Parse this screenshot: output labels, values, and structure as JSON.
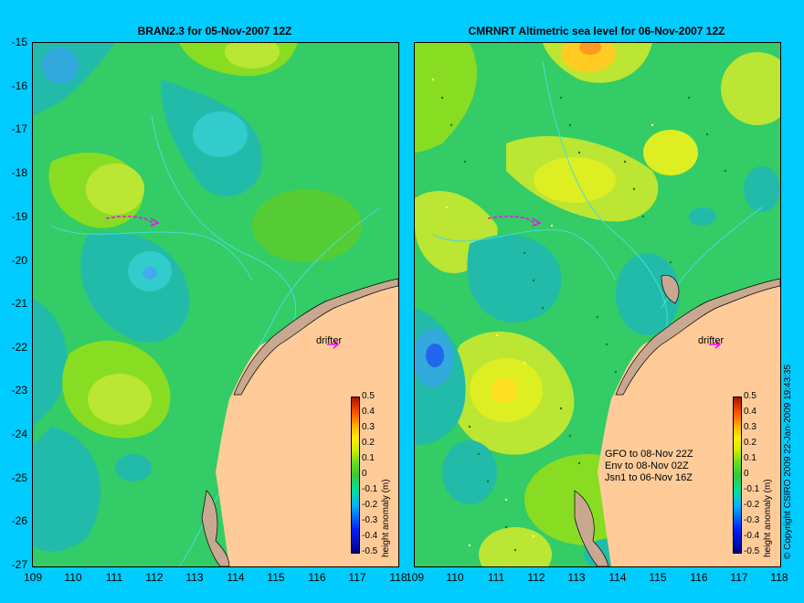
{
  "left_panel": {
    "title": "BRAN2.3 for 05-Nov-2007 12Z",
    "drifter_label": "drifter"
  },
  "right_panel": {
    "title": "CMRNRT Altimetric sea level  for 06-Nov-2007 12Z",
    "drifter_label": "drifter",
    "notes": [
      "GFO to 08-Nov 22Z",
      "Env to 08-Nov 02Z",
      "Jsn1 to 06-Nov 16Z"
    ]
  },
  "y_axis_labels": [
    "-15",
    "-16",
    "-17",
    "-18",
    "-19",
    "-20",
    "-21",
    "-22",
    "-23",
    "-24",
    "-25",
    "-26",
    "-27"
  ],
  "x_axis_labels": [
    "109",
    "110",
    "111",
    "112",
    "113",
    "114",
    "115",
    "116",
    "117",
    "118"
  ],
  "colorbar": {
    "title": "height anomaly (m)",
    "ticks": [
      "0.5",
      "0.4",
      "0.3",
      "0.2",
      "0.1",
      "0",
      "-0.1",
      "-0.2",
      "-0.3",
      "-0.4",
      "-0.5"
    ]
  },
  "copyright": "© Copyright CSIRO 2009   22-Jan-2009 19:43:35",
  "colors": {
    "background": "#00ccff",
    "land": "#ffcc99",
    "coast": "#c8a890",
    "drifter": "#ff00ff"
  }
}
